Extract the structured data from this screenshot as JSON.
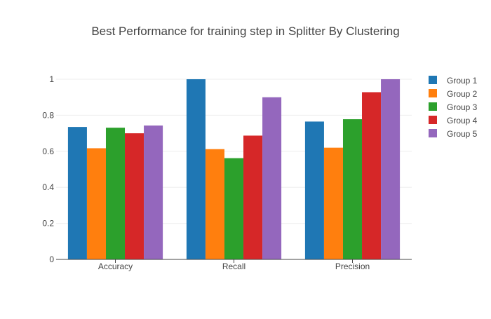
{
  "chart_data": {
    "type": "bar",
    "title": "Best Performance for training step in Splitter By Clustering",
    "xlabel": "",
    "ylabel": "",
    "categories": [
      "Accuracy",
      "Recall",
      "Precision"
    ],
    "ylim": [
      0,
      1
    ],
    "yticks": [
      0,
      0.2,
      0.4,
      0.6,
      0.8,
      1
    ],
    "ytick_labels": [
      "0",
      "0.2",
      "0.4",
      "0.6",
      "0.8",
      "1"
    ],
    "grid": true,
    "legend_position": "top-right",
    "series": [
      {
        "name": "Group 1",
        "color": "#1f77b4",
        "values": [
          0.735,
          1.0,
          0.765
        ]
      },
      {
        "name": "Group 2",
        "color": "#ff7f0e",
        "values": [
          0.617,
          0.612,
          0.62
        ]
      },
      {
        "name": "Group 3",
        "color": "#2ca02c",
        "values": [
          0.731,
          0.562,
          0.778
        ]
      },
      {
        "name": "Group 4",
        "color": "#d62728",
        "values": [
          0.7,
          0.687,
          0.928
        ]
      },
      {
        "name": "Group 5",
        "color": "#9467bd",
        "values": [
          0.743,
          0.9,
          1.0
        ]
      }
    ]
  }
}
